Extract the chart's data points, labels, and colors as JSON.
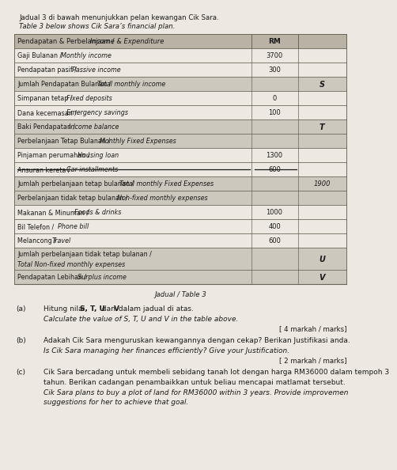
{
  "title_line1": "Jadual 3 di bawah menunjukkan pelan kewangan Cik Sara.",
  "title_line2": "Table 3 below shows Cik Sara’s financial plan.",
  "table_caption": "Jadual / Table 3",
  "header_col1": "Pendapatan & Perbelanjaan / Income & Expenditure",
  "header_col2": "RM",
  "rows": [
    {
      "malay": "Gaji Bulanan",
      "eng": "Monthly income",
      "val1": "3700",
      "val2": "",
      "strike": false,
      "shaded": false
    },
    {
      "malay": "Pendapatan pasif",
      "eng": "Passive income",
      "val1": "300",
      "val2": "",
      "strike": false,
      "shaded": false
    },
    {
      "malay": "Jumlah Pendapatan Bulanan",
      "eng": "Total monthly income",
      "val1": "",
      "val2": "S",
      "strike": false,
      "shaded": true
    },
    {
      "malay": "Simpanan tetap",
      "eng": "Fixed deposits",
      "val1": "0",
      "val2": "",
      "strike": false,
      "shaded": false
    },
    {
      "malay": "Dana kecemasan",
      "eng": "Emergency savings",
      "val1": "100",
      "val2": "",
      "strike": false,
      "shaded": false
    },
    {
      "malay": "Baki Pendapatan",
      "eng": "Income balance",
      "val1": "",
      "val2": "T",
      "strike": false,
      "shaded": true
    },
    {
      "malay": "Perbelanjaan Tetap Bulanan",
      "eng": "Monthly Fixed Expenses",
      "val1": "",
      "val2": "",
      "strike": false,
      "shaded": true
    },
    {
      "malay": "Pinjaman perumahan",
      "eng": "Housing loan",
      "val1": "1300",
      "val2": "",
      "strike": false,
      "shaded": false
    },
    {
      "malay": "Ansuran kereta",
      "eng": "Car installments",
      "val1": "600",
      "val2": "",
      "strike": true,
      "shaded": false
    },
    {
      "malay": "Jumlah perbelanjaan tetap bulanan",
      "eng": "Total monthly Fixed Expenses",
      "val1": "",
      "val2": "1900",
      "strike": false,
      "shaded": true
    },
    {
      "malay": "Perbelanjaan tidak tetap bulanan",
      "eng": "Non-fixed monthly expenses",
      "val1": "",
      "val2": "",
      "strike": false,
      "shaded": true
    },
    {
      "malay": "Makanan & Minuman",
      "eng": "Foods & drinks",
      "val1": "1000",
      "val2": "",
      "strike": false,
      "shaded": false
    },
    {
      "malay": "Bil Telefon",
      "eng": "Phone bill",
      "val1": "400",
      "val2": "",
      "strike": false,
      "shaded": false
    },
    {
      "malay": "Melancong",
      "eng": "Travel",
      "val1": "600",
      "val2": "",
      "strike": false,
      "shaded": false
    },
    {
      "malay": "Jumlah perbelanjaan tidak tetap bulanan",
      "eng": "Total Non-fixed monthly expenses",
      "val1": "",
      "val2": "U",
      "strike": false,
      "shaded": true,
      "two_line": true
    },
    {
      "malay": "Pendapatan Lebihan",
      "eng": "Surplus income",
      "val1": "",
      "val2": "V",
      "strike": false,
      "shaded": true
    }
  ],
  "q_a_part": "(a)",
  "q_a_malay": "Hitung nilai ",
  "q_a_bold1": "S, T, U",
  "q_a_mid": " dan ",
  "q_a_bold2": "V",
  "q_a_end": " dalam jadual di atas.",
  "q_a_eng": "Calculate the value of S, T, U and V in the table above.",
  "q_a_marks": "[ 4 markah / marks]",
  "q_b_part": "(b)",
  "q_b_malay": "Adakah Cik Sara menguruskan kewangannya dengan cekap? Berikan Justifikasi anda.",
  "q_b_eng": "Is Cik Sara managing her finances efficiently? Give your Justification.",
  "q_b_marks": "[ 2 markah / marks]",
  "q_c_part": "(c)",
  "q_c_malay1": "Cik Sara bercadang untuk membeli sebidang tanah lot dengan harga RM36000 dalam tempoh 3",
  "q_c_malay2": "tahun. Berikan cadangan penambaikkan untuk beliau mencapai matlamat tersebut.",
  "q_c_eng1": "Cik Sara plans to buy a plot of land for RM36000 within 3 years. Provide improvemen",
  "q_c_eng2": "suggestions for her to achieve that goal.",
  "bg_color": "#ede9e2",
  "header_bg": "#bab3a5",
  "shaded_bg": "#cdc8bd",
  "border_color": "#666655",
  "text_color": "#1a1a1a"
}
